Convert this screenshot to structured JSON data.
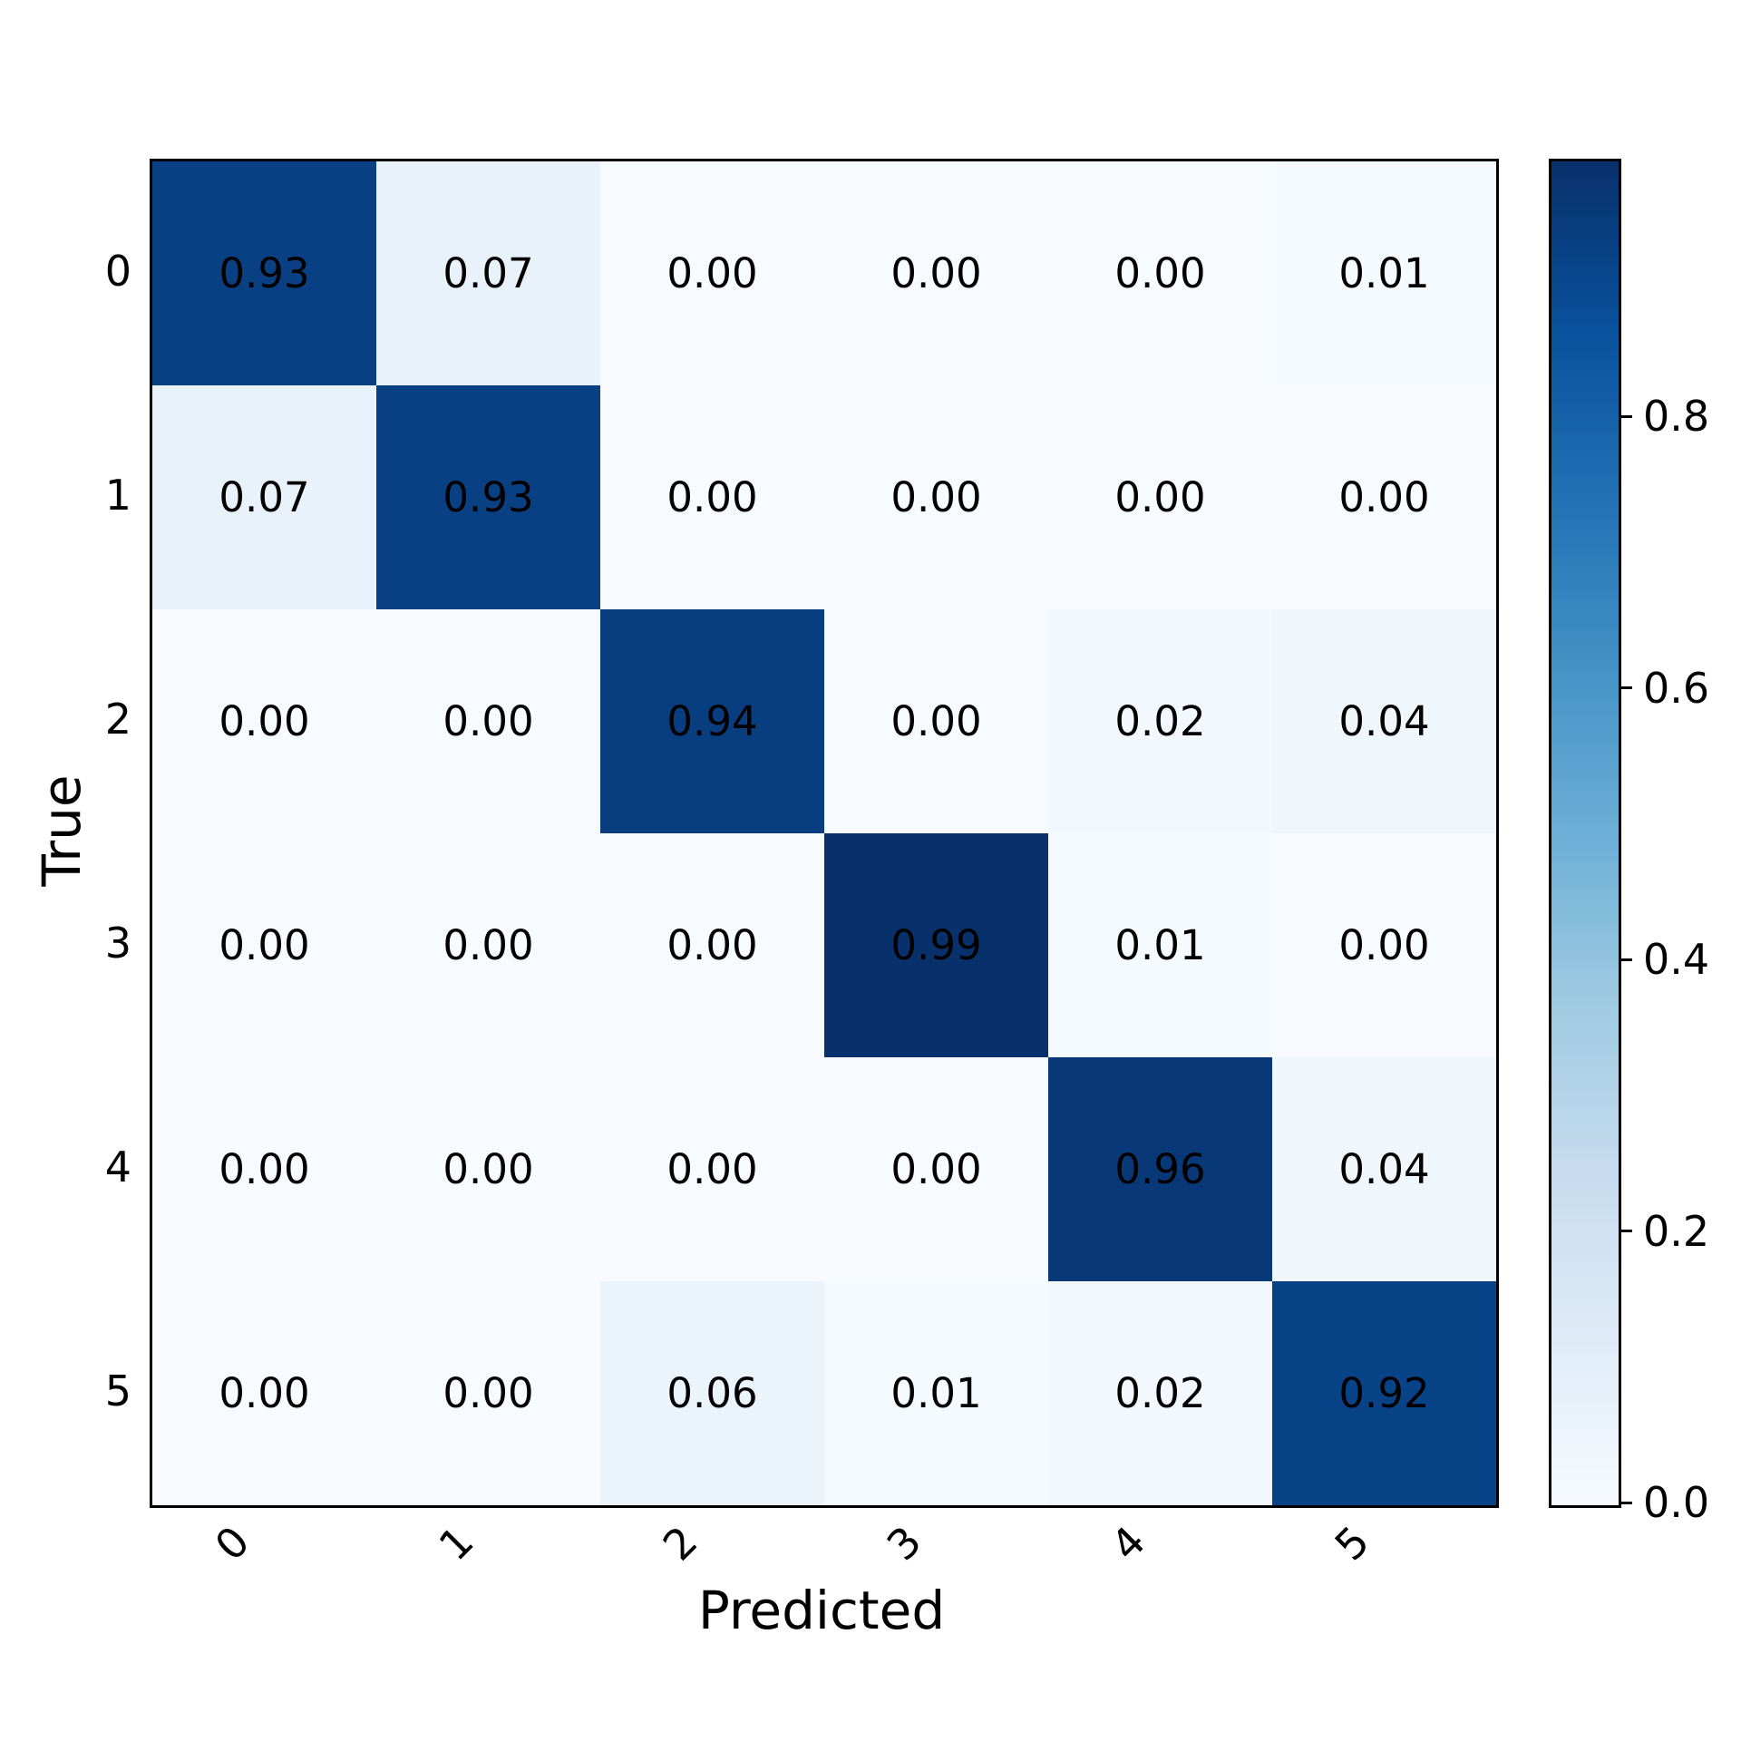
{
  "figure": {
    "background": "#ffffff"
  },
  "chart_data": {
    "type": "heatmap",
    "subtype": "confusion-matrix",
    "title": "",
    "xlabel": "Predicted",
    "ylabel": "True",
    "x_tick_labels": [
      "0",
      "1",
      "2",
      "3",
      "4",
      "5"
    ],
    "y_tick_labels": [
      "0",
      "1",
      "2",
      "3",
      "4",
      "5"
    ],
    "matrix": [
      [
        0.93,
        0.07,
        0.0,
        0.0,
        0.0,
        0.01
      ],
      [
        0.07,
        0.93,
        0.0,
        0.0,
        0.0,
        0.0
      ],
      [
        0.0,
        0.0,
        0.94,
        0.0,
        0.02,
        0.04
      ],
      [
        0.0,
        0.0,
        0.0,
        0.99,
        0.01,
        0.0
      ],
      [
        0.0,
        0.0,
        0.0,
        0.0,
        0.96,
        0.04
      ],
      [
        0.0,
        0.0,
        0.06,
        0.01,
        0.02,
        0.92
      ]
    ],
    "value_decimals": 2,
    "annotation_color": "#000000",
    "colormap": "Blues",
    "colormap_stops": [
      "#f7fbff",
      "#deebf7",
      "#c6dbef",
      "#9ecae1",
      "#6baed6",
      "#4292c6",
      "#2171b5",
      "#08519c",
      "#08306b"
    ],
    "vmin": 0.0,
    "vmax": 0.99,
    "grid": false,
    "colorbar": {
      "position": "right",
      "ticks": [
        0.0,
        0.2,
        0.4,
        0.6,
        0.8
      ],
      "tick_labels": [
        "0.0",
        "0.2",
        "0.4",
        "0.6",
        "0.8"
      ]
    }
  }
}
